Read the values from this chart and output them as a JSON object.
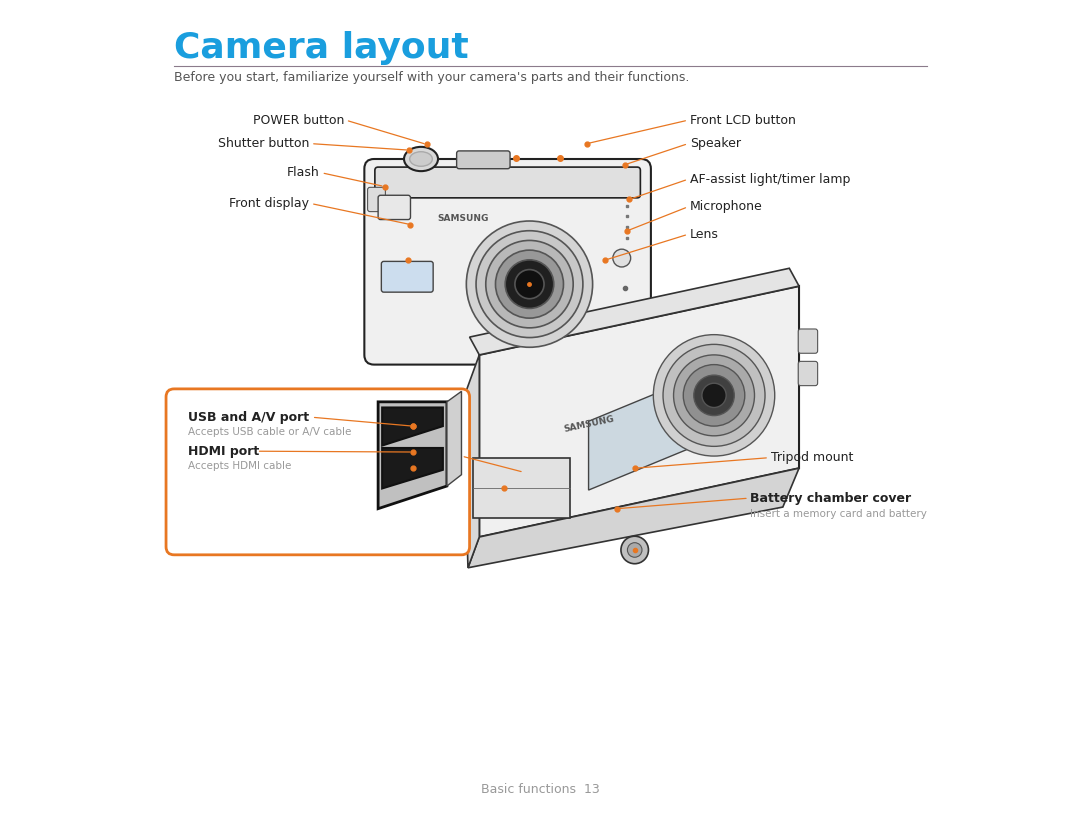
{
  "title": "Camera layout",
  "title_color": "#1a9ede",
  "subtitle": "Before you start, familiarize yourself with your camera's parts and their functions.",
  "subtitle_color": "#555555",
  "separator_color": "#8B7B8B",
  "background_color": "#ffffff",
  "label_color": "#222222",
  "sublabel_color": "#999999",
  "arrow_color": "#e87722",
  "orange_box_color": "#e87722",
  "page_text": "Basic functions  13"
}
